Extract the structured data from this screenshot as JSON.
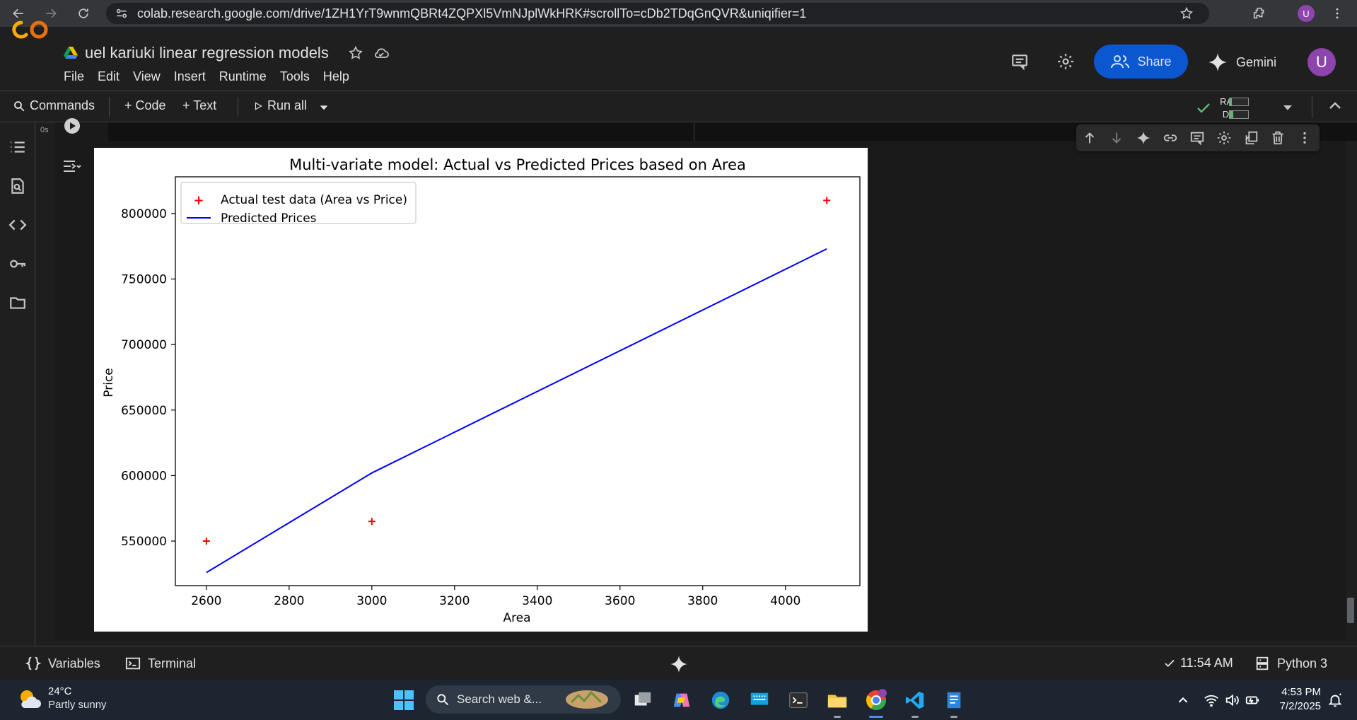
{
  "browser": {
    "url": "colab.research.google.com/drive/1ZH1YrT9wnmQBRt4ZQPXl5VmNJplWkHRK#scrollTo=cDb2TDqGnQVR&uniqifier=1",
    "profile_initial": "U"
  },
  "colab": {
    "logo_text": "CO",
    "notebook_title": "uel kariuki linear regression models",
    "menu": [
      "File",
      "Edit",
      "View",
      "Insert",
      "Runtime",
      "Tools",
      "Help"
    ],
    "share_label": "Share",
    "gemini_label": "Gemini",
    "avatar_initial": "U"
  },
  "toolbar": {
    "commands_label": "Commands",
    "code_label": "+ Code",
    "text_label": "+ Text",
    "run_all_label": "Run all",
    "ram_label": "RAM",
    "disk_label": "Disk",
    "ram_usage": 0.1,
    "disk_usage": 0.2
  },
  "cell": {
    "exec_time": "0s"
  },
  "chart_data": {
    "type": "scatter",
    "title": "Multi-variate model: Actual vs Predicted Prices based on Area",
    "xlabel": "Area",
    "ylabel": "Price",
    "xlim": [
      2525,
      4180
    ],
    "ylim": [
      516000,
      828000
    ],
    "xticks": [
      2600,
      2800,
      3000,
      3200,
      3400,
      3600,
      3800,
      4000
    ],
    "yticks": [
      550000,
      600000,
      650000,
      700000,
      750000,
      800000
    ],
    "xtick_labels": [
      "2600",
      "2800",
      "3000",
      "3200",
      "3400",
      "3600",
      "3800",
      "4000"
    ],
    "ytick_labels": [
      "550000",
      "600000",
      "650000",
      "700000",
      "750000",
      "800000"
    ],
    "legend_position": "top-left",
    "series": [
      {
        "name": "Actual test data (Area vs Price)",
        "kind": "scatter",
        "marker": "+",
        "color": "#ff0000",
        "x": [
          2600,
          3000,
          4100
        ],
        "y": [
          550000,
          565000,
          810000
        ]
      },
      {
        "name": "Predicted Prices",
        "kind": "line",
        "color": "#0000ff",
        "x": [
          2600,
          3000,
          4100
        ],
        "y": [
          526000,
          602000,
          773000
        ]
      }
    ]
  },
  "statusbar": {
    "variables_label": "Variables",
    "terminal_label": "Terminal",
    "last_run": "11:54 AM",
    "runtime": "Python 3"
  },
  "taskbar": {
    "temperature": "24°C",
    "weather": "Partly sunny",
    "search_placeholder": "Search web &...",
    "time": "4:53 PM",
    "date": "7/2/2025"
  }
}
